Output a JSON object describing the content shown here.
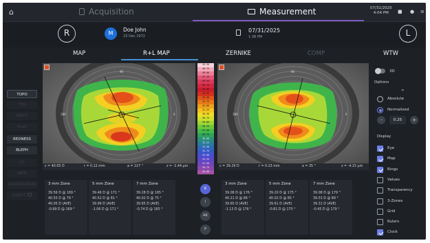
{
  "topbar": {
    "acquisition_label": "Acquisition",
    "measurement_label": "Measurement",
    "date": "07/31/2025",
    "time": "4:04 PM"
  },
  "patient": {
    "right_eye": "R",
    "left_eye": "L",
    "initial": "M",
    "name": "Doe John",
    "dob": "23 Dec 1972",
    "exam_date": "07/31/2025",
    "exam_time": "1:38 PM"
  },
  "tabs": [
    "MAP",
    "R+L MAP",
    "ZERNIKE",
    "COMP",
    "WTW"
  ],
  "sidebar": [
    "TOPO",
    "TOP",
    "NIBUT",
    "Pupil",
    "REDNESS",
    "BLEPH",
    "OT",
    "MEIB",
    "AGGREGATION",
    "QUEST"
  ],
  "left_map": {
    "stats": [
      "c = 40.05 D",
      "r = 0.12 mm",
      "a = 227 °",
      "z = -1.44 µm"
    ],
    "zones": [
      {
        "title": "3 mm Zone",
        "lines": [
          "39.56 D @ 169 °",
          "40.55 D @ 79 °",
          "40.05 D (AVE)",
          "-0.99 D @ 169 °"
        ]
      },
      {
        "title": "5 mm Zone",
        "lines": [
          "39.46 D @ 171 °",
          "40.52 D @ 81 °",
          "39.99 D (AVE)",
          "-1.06 D @ 171 °"
        ]
      },
      {
        "title": "7 mm Zone",
        "lines": [
          "39.28 D @ 165 °",
          "40.02 D @ 75 °",
          "39.65 D (AVE)",
          "-0.74 D @ 165 °"
        ]
      }
    ]
  },
  "right_map": {
    "stats": [
      "c = 39.29 D",
      "r = 0.23 mm",
      "a = 35 °",
      "z = -4.15 µm"
    ],
    "zones": [
      {
        "title": "3 mm Zone",
        "lines": [
          "39.08 D @ 176 °",
          "40.21 D @ 86 °",
          "39.65 D (AVE)",
          "-1.13 D @ 176 °"
        ]
      },
      {
        "title": "5 mm Zone",
        "lines": [
          "39.20 D @ 175 °",
          "40.02 D @ 85 °",
          "39.61 D (AVE)",
          "-0.81 D @ 175 °"
        ]
      },
      {
        "title": "7 mm Zone",
        "lines": [
          "39.08 D @ 179 °",
          "39.53 D @ 89 °",
          "39.31 D (AVE)",
          "-0.45 D @ 179 °"
        ]
      }
    ]
  },
  "scale": [
    "49.50",
    "48.75",
    "48.00",
    "47.25",
    "46.50",
    "45.75",
    "45.00",
    "44.25",
    "43.50",
    "42.75",
    "42.00",
    "41.25",
    "40.50",
    "39.75",
    "39.00",
    "38.25",
    "37.50",
    "36.75",
    "36.00",
    "35.25",
    "34.50",
    "33.75",
    "33.00",
    "32.25",
    "31.50",
    "30.75",
    "30.00"
  ],
  "scale_colors": [
    "#f7d2da",
    "#f2a8b8",
    "#ec7f97",
    "#e25775",
    "#d93a5a",
    "#d2283f",
    "#c81e2c",
    "#d4301e",
    "#e0551a",
    "#e97a1a",
    "#f0a01d",
    "#f4c221",
    "#f0dc28",
    "#cfe02c",
    "#9fd634",
    "#6ec83c",
    "#45b84a",
    "#2fa35d",
    "#2a8f7a",
    "#2b7c99",
    "#2f69b6",
    "#3958c7",
    "#4a4ccd",
    "#5e47c4",
    "#7345b9",
    "#8a48ad",
    "#a253a6"
  ],
  "keys": [
    "K",
    "I",
    "AK",
    "P"
  ],
  "options": {
    "toggle_3d": "3D",
    "title": "Options",
    "absolute": "Absolute",
    "normalized": "Normalized",
    "step_value": "0.25",
    "step_minus": "-",
    "step_plus": "+",
    "display": "Display",
    "checks": [
      {
        "label": "Eye",
        "on": true
      },
      {
        "label": "Map",
        "on": true
      },
      {
        "label": "Rings",
        "on": true
      },
      {
        "label": "Values",
        "on": false
      },
      {
        "label": "Transparency",
        "on": false
      },
      {
        "label": "3-Zones",
        "on": false
      },
      {
        "label": "Grid",
        "on": false
      },
      {
        "label": "Rulers",
        "on": false
      },
      {
        "label": "Clock",
        "on": true
      }
    ]
  }
}
